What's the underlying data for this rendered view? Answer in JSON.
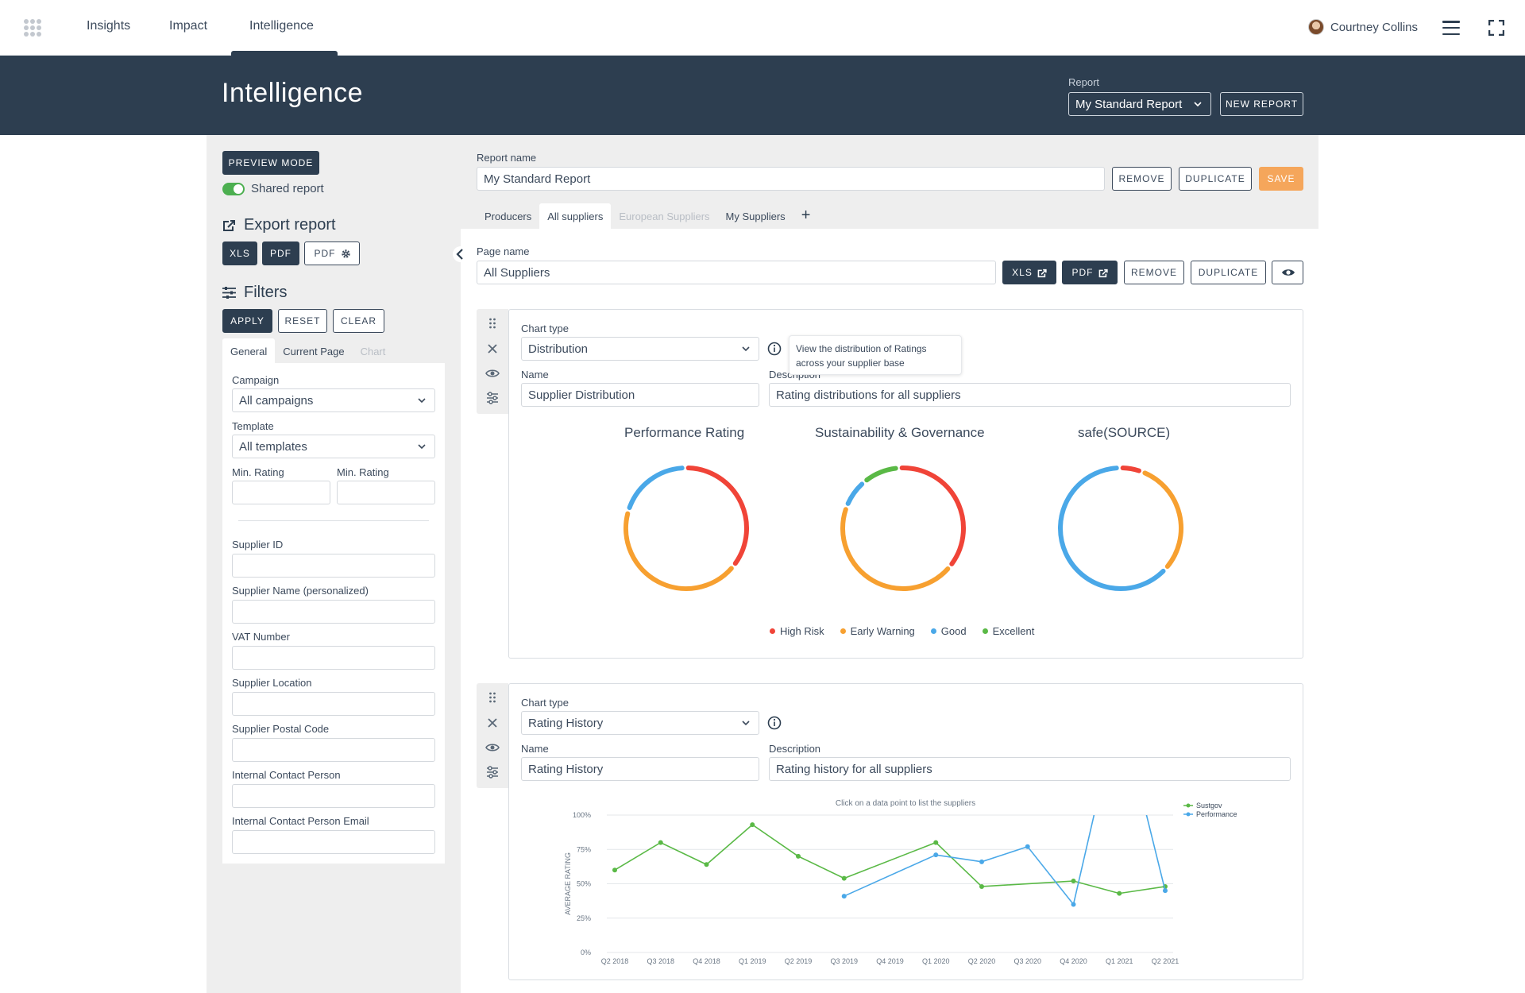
{
  "nav": {
    "items": [
      "Insights",
      "Impact",
      "Intelligence"
    ],
    "active": "Intelligence",
    "user_name": "Courtney Collins"
  },
  "header": {
    "title": "Intelligence",
    "report_label": "Report",
    "report_selected": "My Standard Report",
    "new_report": "NEW REPORT"
  },
  "left": {
    "preview_mode": "PREVIEW MODE",
    "shared_report": "Shared report",
    "export_title": "Export report",
    "export_xls": "XLS",
    "export_pdf": "PDF",
    "export_pdf_settings": "PDF",
    "filters_title": "Filters",
    "apply": "APPLY",
    "reset": "RESET",
    "clear": "CLEAR",
    "tabs": [
      "General",
      "Current Page",
      "Chart"
    ],
    "fields": {
      "campaign_label": "Campaign",
      "campaign_value": "All campaigns",
      "template_label": "Template",
      "template_value": "All templates",
      "min_rating_1": "Min. Rating",
      "min_rating_2": "Min. Rating",
      "supplier_id": "Supplier ID",
      "supplier_name": "Supplier Name (personalized)",
      "vat": "VAT Number",
      "location": "Supplier Location",
      "postal": "Supplier Postal Code",
      "contact": "Internal Contact Person",
      "contact_email": "Internal Contact Person Email"
    }
  },
  "report": {
    "name_label": "Report name",
    "name_value": "My Standard Report",
    "remove": "REMOVE",
    "duplicate": "DUPLICATE",
    "save": "SAVE",
    "tabs": [
      "Producers",
      "All suppliers",
      "European Suppliers",
      "My Suppliers"
    ],
    "active_tab": "All suppliers",
    "add_tab": "+"
  },
  "page": {
    "name_label": "Page name",
    "name_value": "All Suppliers",
    "xls": "XLS",
    "pdf": "PDF",
    "remove": "REMOVE",
    "duplicate": "DUPLICATE"
  },
  "card1": {
    "chart_type_label": "Chart type",
    "chart_type_value": "Distribution",
    "name_label": "Name",
    "name_value": "Supplier Distribution",
    "desc_label": "Description",
    "desc_value": "Rating distributions for all suppliers",
    "tooltip": "View the distribution of Ratings across your supplier base"
  },
  "card2": {
    "chart_type_label": "Chart type",
    "chart_type_value": "Rating History",
    "name_label": "Name",
    "name_value": "Rating History",
    "desc_label": "Description",
    "desc_value": "Rating history for all suppliers"
  },
  "colors": {
    "high_risk": "#f04438",
    "early_warning": "#f7a030",
    "good": "#4aa8e8",
    "excellent": "#5ab946",
    "dark": "#2d3e50",
    "orange_btn": "#f5a65b"
  },
  "chart_data": [
    {
      "type": "pie",
      "variant": "donut",
      "title": "Performance Rating",
      "slices": [
        {
          "name": "High Risk",
          "value": 36
        },
        {
          "name": "Early Warning",
          "value": 44
        },
        {
          "name": "Good",
          "value": 20
        }
      ]
    },
    {
      "type": "pie",
      "variant": "donut",
      "title": "Sustainability & Governance",
      "slices": [
        {
          "name": "High Risk",
          "value": 37
        },
        {
          "name": "Early Warning",
          "value": 45
        },
        {
          "name": "Good",
          "value": 8
        },
        {
          "name": "Excellent",
          "value": 10
        }
      ]
    },
    {
      "type": "pie",
      "variant": "donut",
      "title": "safe(SOURCE)",
      "slices": [
        {
          "name": "High Risk",
          "value": 6
        },
        {
          "name": "Early Warning",
          "value": 31
        },
        {
          "name": "Good",
          "value": 63
        }
      ]
    },
    {
      "type": "line",
      "title": "Click on a data point to list the suppliers",
      "ylabel": "AVERAGE RATING",
      "ylim": [
        0,
        100
      ],
      "yticks": [
        "0%",
        "25%",
        "50%",
        "75%",
        "100%"
      ],
      "legend_position": "top-right",
      "categories": [
        "Q2 2018",
        "Q3 2018",
        "Q4 2018",
        "Q1 2019",
        "Q2 2019",
        "Q3 2019",
        "Q4 2019",
        "Q1 2020",
        "Q2 2020",
        "Q3 2020",
        "Q4 2020",
        "Q1 2021",
        "Q2 2021"
      ],
      "series": [
        {
          "name": "Sustgov",
          "values": [
            60,
            80,
            64,
            93,
            70,
            54,
            null,
            80,
            48,
            null,
            52,
            43,
            48
          ]
        },
        {
          "name": "Performance",
          "values": [
            null,
            null,
            null,
            null,
            null,
            41,
            null,
            71,
            66,
            77,
            35,
            180,
            45
          ]
        }
      ],
      "legend": [
        "Sustgov",
        "Performance"
      ]
    }
  ],
  "legend_labels": [
    "High Risk",
    "Early Warning",
    "Good",
    "Excellent"
  ]
}
